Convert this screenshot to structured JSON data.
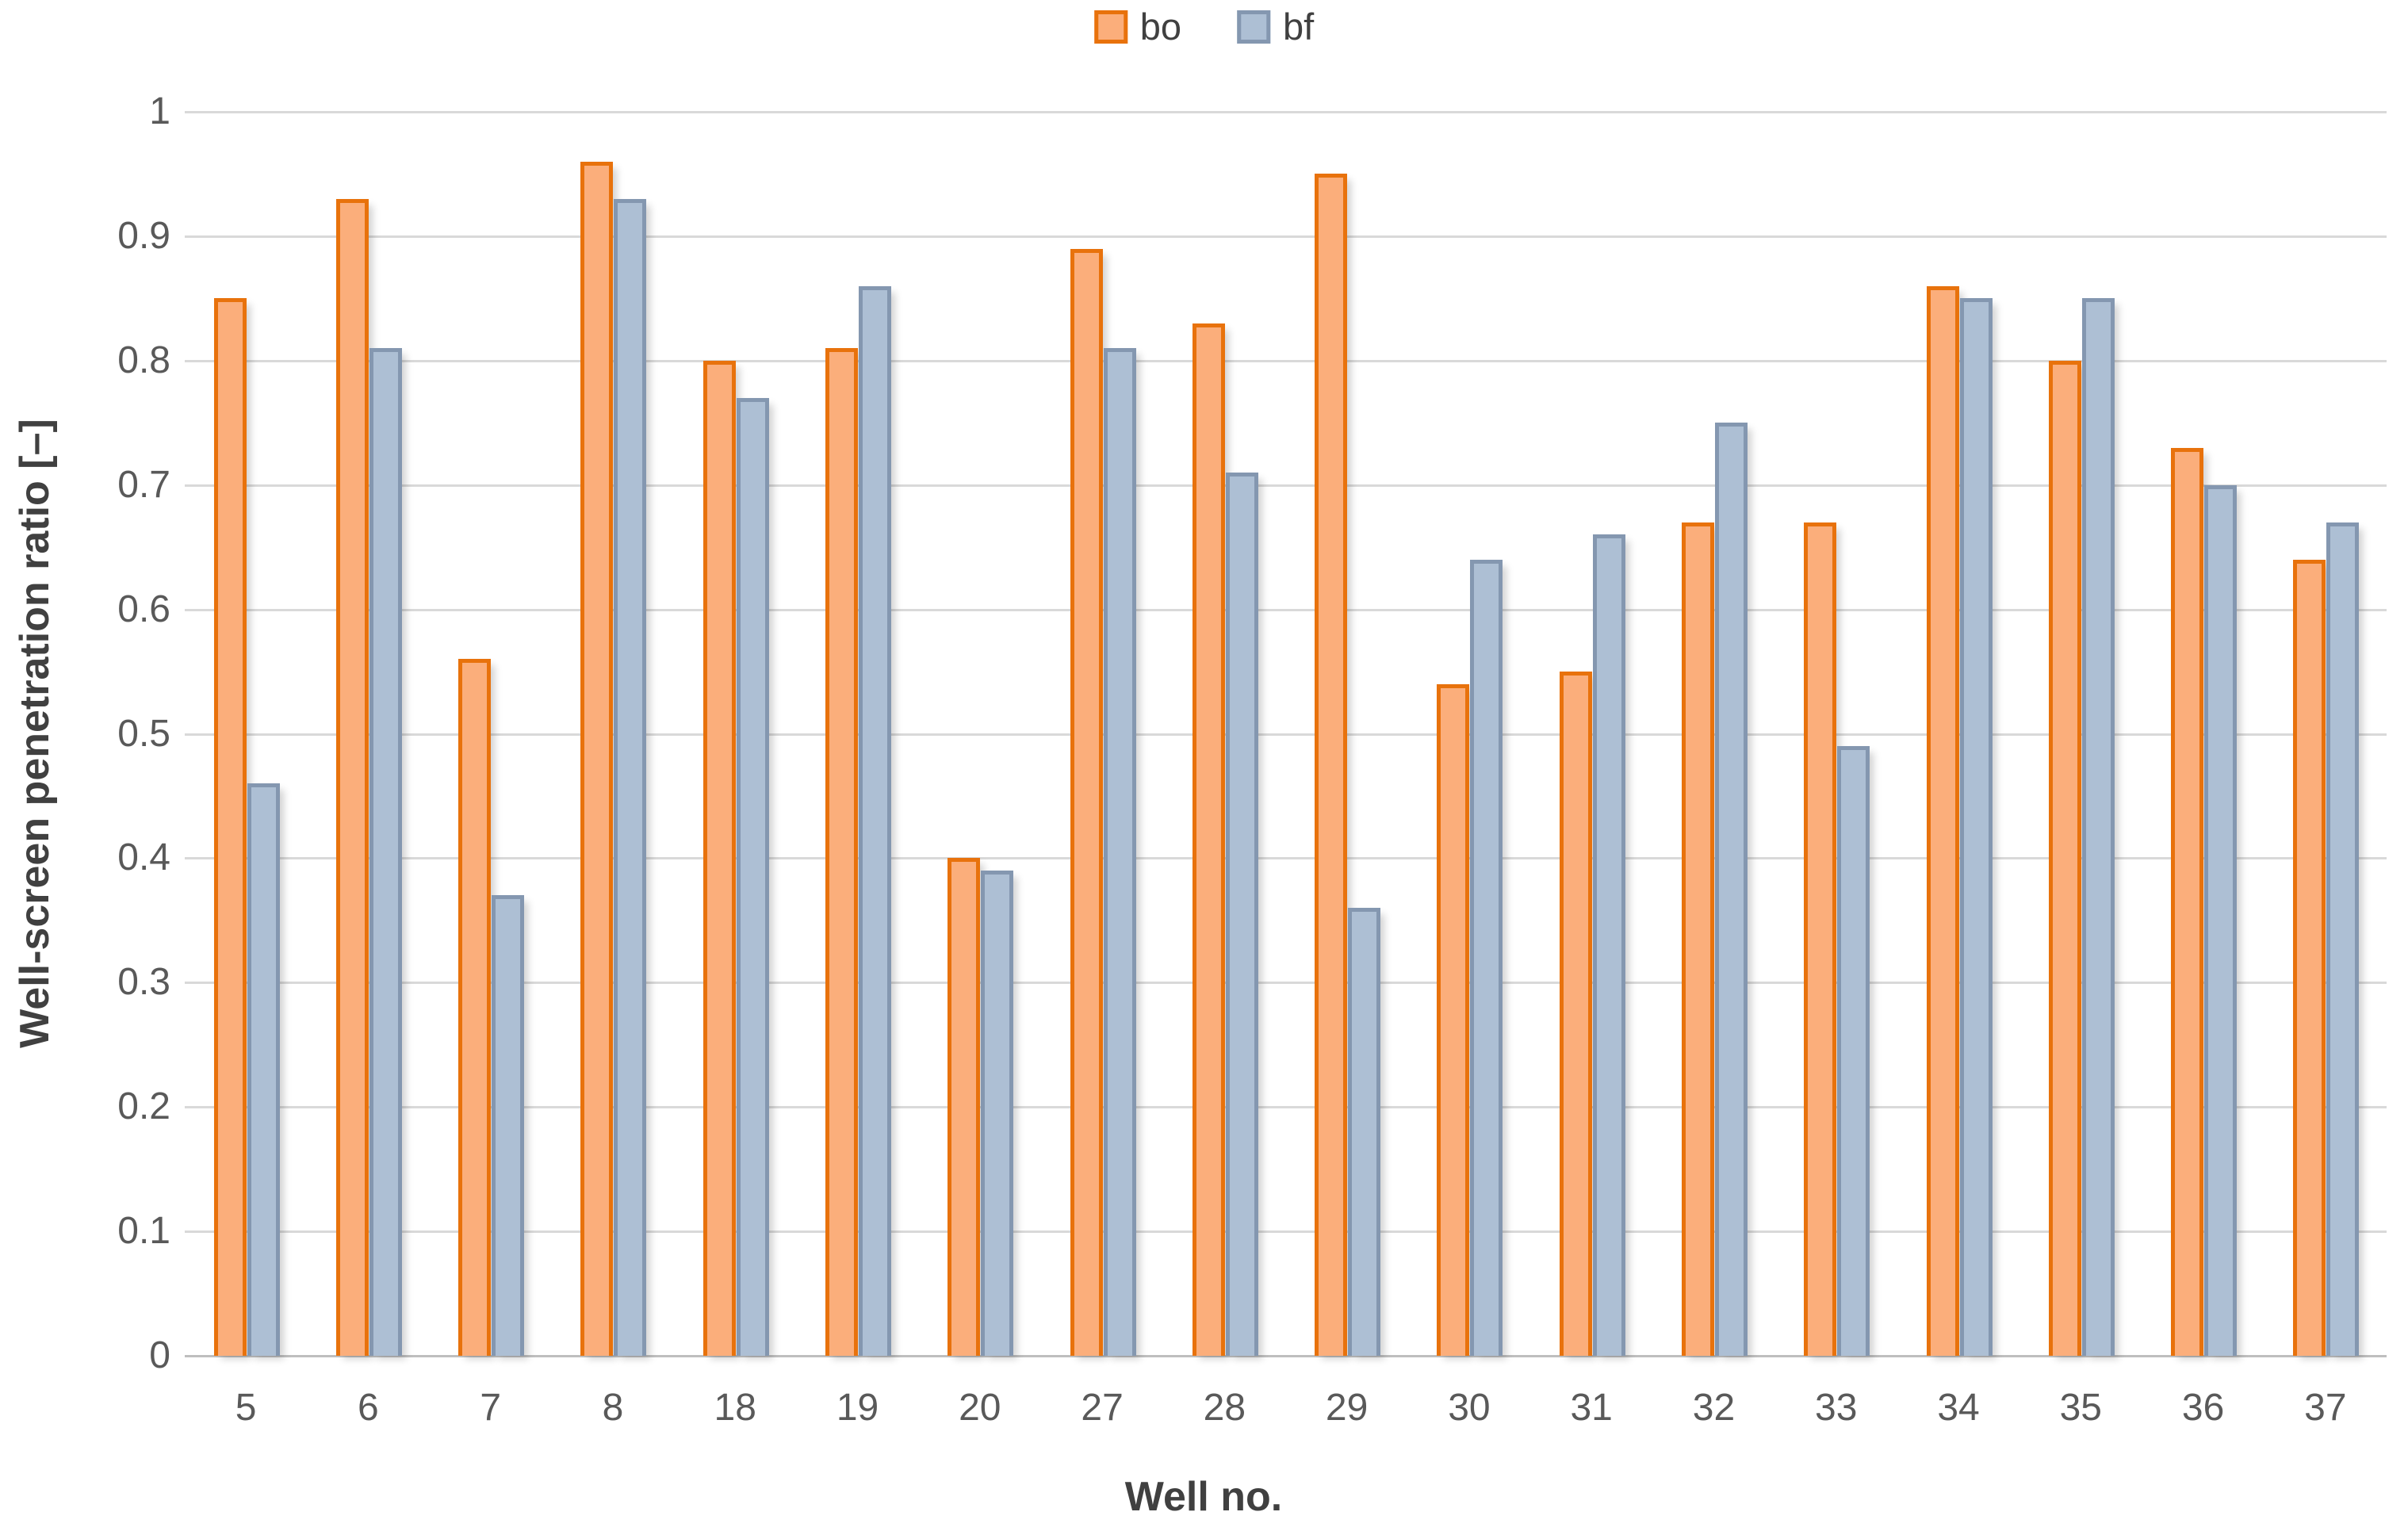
{
  "chart_data": {
    "type": "bar",
    "title": "",
    "xlabel": "Well no.",
    "ylabel": "Well-screen penetration ratio [–]",
    "categories": [
      "5",
      "6",
      "7",
      "8",
      "18",
      "19",
      "20",
      "27",
      "28",
      "29",
      "30",
      "31",
      "32",
      "33",
      "34",
      "35",
      "36",
      "37"
    ],
    "series": [
      {
        "name": "bo",
        "fill_color": "#FBAE7B",
        "border_color": "#E8720C",
        "values": [
          0.85,
          0.93,
          0.56,
          0.96,
          0.8,
          0.81,
          0.4,
          0.89,
          0.83,
          0.95,
          0.54,
          0.55,
          0.67,
          0.67,
          0.86,
          0.8,
          0.73,
          0.64
        ]
      },
      {
        "name": "bf",
        "fill_color": "#ADBFD4",
        "border_color": "#8497B0",
        "values": [
          0.46,
          0.81,
          0.37,
          0.93,
          0.77,
          0.86,
          0.39,
          0.81,
          0.71,
          0.36,
          0.64,
          0.66,
          0.75,
          0.49,
          0.85,
          0.85,
          0.7,
          0.67
        ]
      }
    ],
    "ylim": [
      0,
      1
    ],
    "ytick_step": 0.1,
    "yticks": [
      "0",
      "0.1",
      "0.2",
      "0.3",
      "0.4",
      "0.5",
      "0.6",
      "0.7",
      "0.8",
      "0.9",
      "1"
    ],
    "grid": true,
    "legend_position": "top-center",
    "gridline_color": "#D9D9D9",
    "axis_line_color": "#BFBFBF",
    "tick_label_color": "#595959",
    "axis_title_color": "#404040"
  }
}
